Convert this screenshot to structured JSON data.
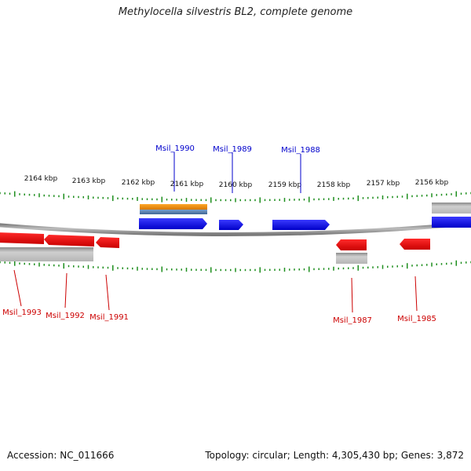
{
  "title": "Methylocella silvestris BL2, complete genome",
  "accession_text": "Accession: NC_011666",
  "summary_text": "Topology: circular; Length: 4,305,430 bp; Genes: 3,872",
  "colors": {
    "forward": "#0000ee",
    "reverse": "#ee0000",
    "tick": "#1f8f1f",
    "backbone": "#808080",
    "orange_feature": "#f08c00",
    "steel_feature": "#5a82b4",
    "grey_feature": "#a9a9a9"
  },
  "scale_labels": [
    "2164 kbp",
    "2163 kbp",
    "2162 kbp",
    "2161 kbp",
    "2160 kbp",
    "2159 kbp",
    "2158 kbp",
    "2157 kbp",
    "2156 kbp"
  ],
  "genes": {
    "forward": [
      "Msil_1990",
      "Msil_1989",
      "Msil_1988"
    ],
    "reverse": [
      "Msil_1993",
      "Msil_1992",
      "Msil_1991",
      "Msil_1987",
      "Msil_1985"
    ]
  }
}
